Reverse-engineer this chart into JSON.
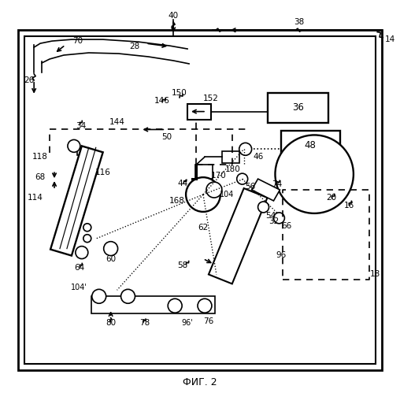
{
  "title": "ФИГ. 2",
  "bg": "#ffffff",
  "lw": 1.2
}
